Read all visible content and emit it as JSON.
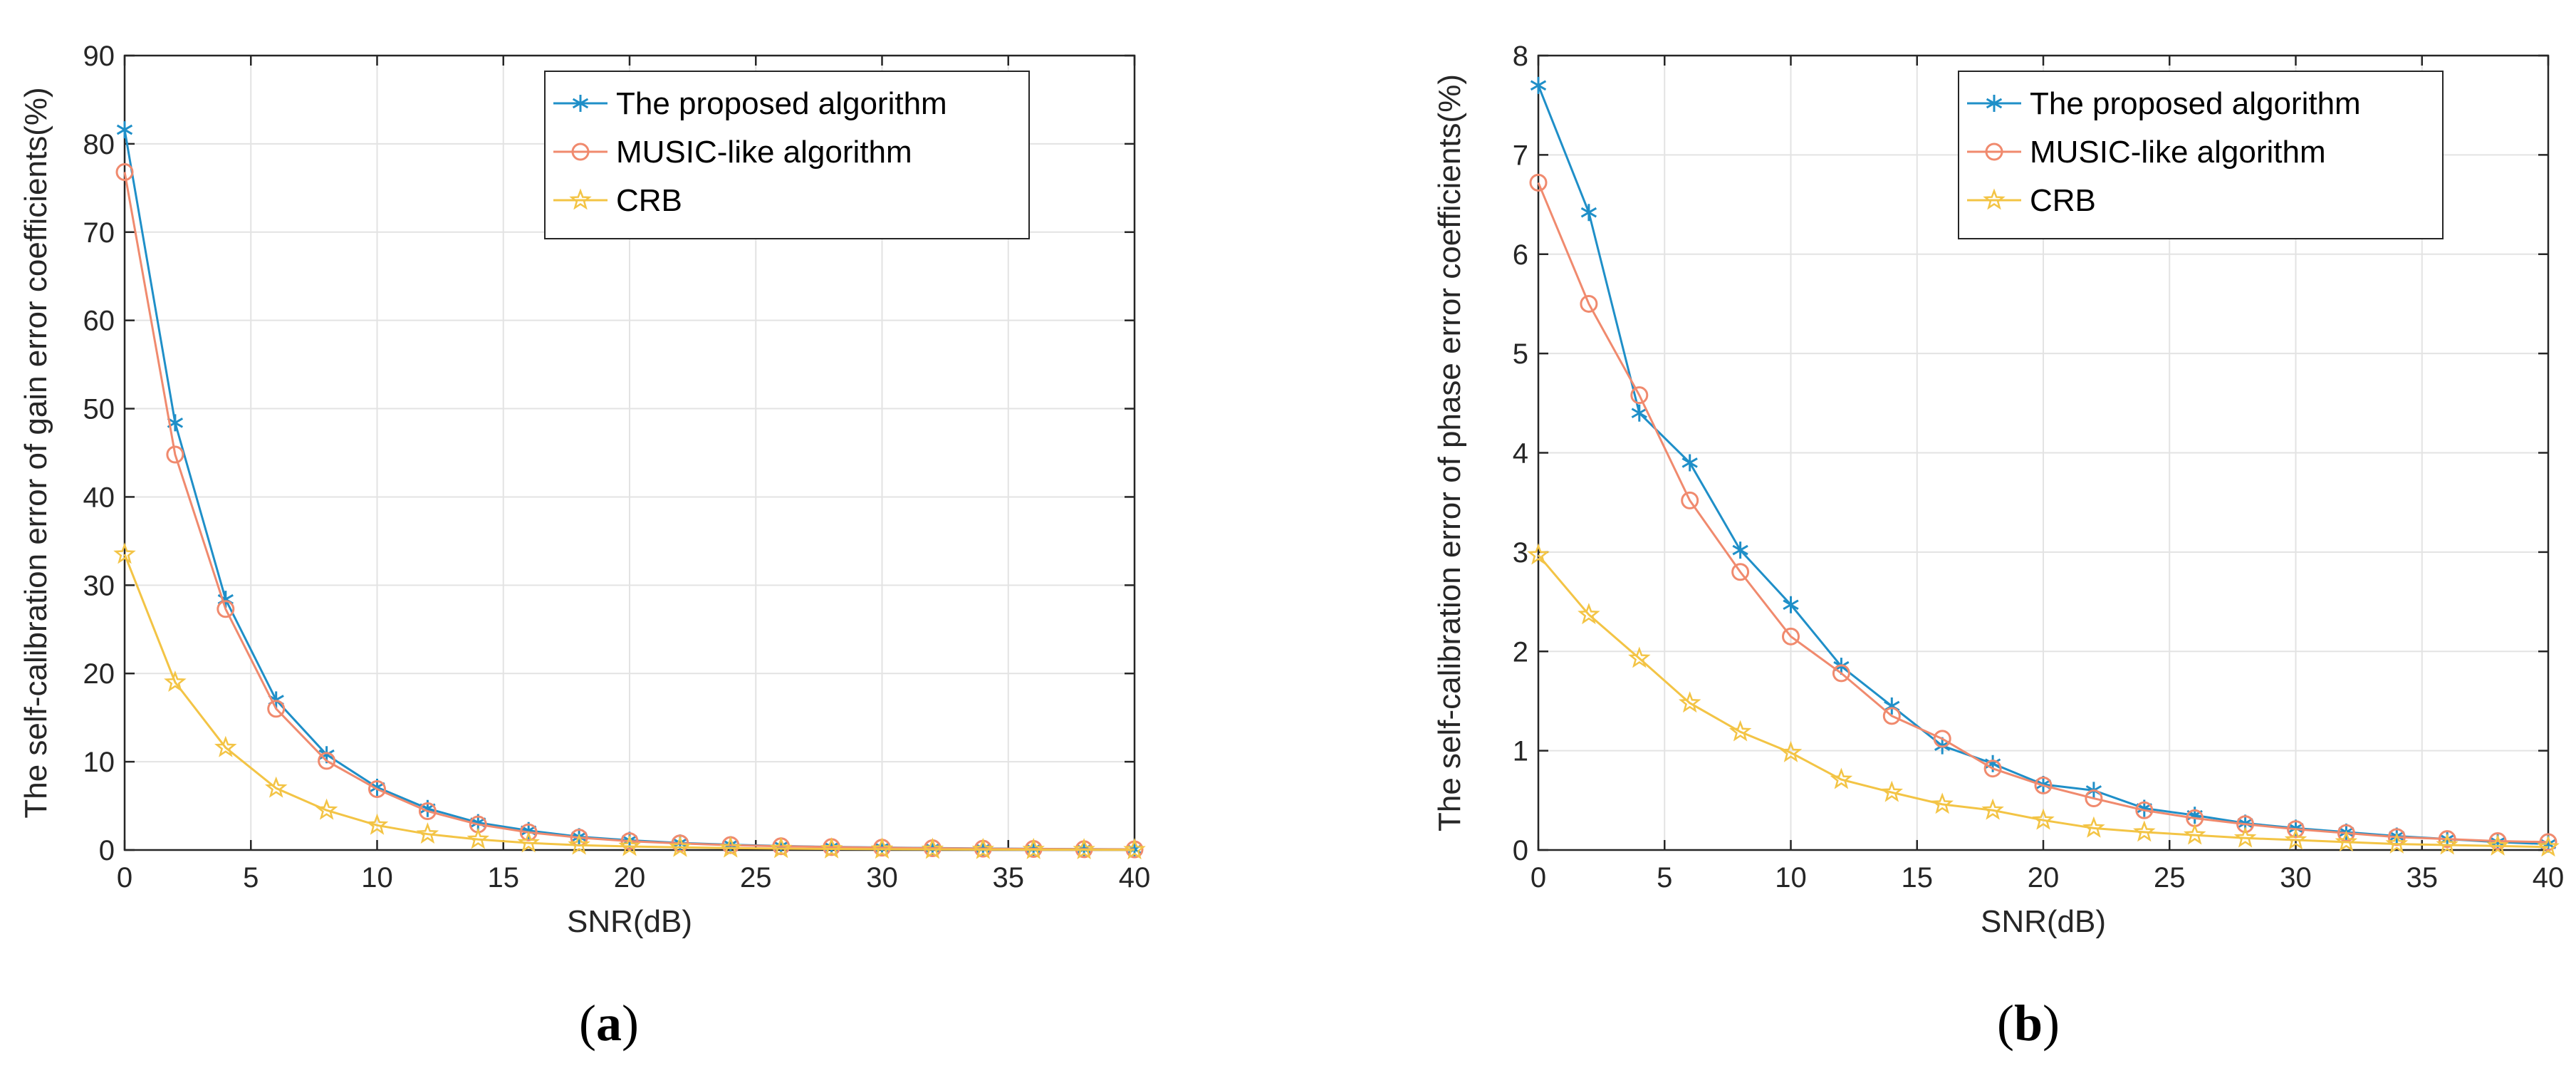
{
  "colors": {
    "proposed": "#1f8fc8",
    "music": "#f08a6e",
    "crb": "#f3c445",
    "axis": "#262626",
    "grid": "#e3e3e3"
  },
  "chart_data": [
    {
      "type": "line",
      "panel_label": "a",
      "panel_label_open": "(",
      "panel_label_close": ")",
      "xlabel": "SNR(dB)",
      "ylabel": "The self-calibration error of gain error coefficients(%)",
      "xlim": [
        0,
        40
      ],
      "ylim": [
        0,
        90
      ],
      "xticks": [
        0,
        5,
        10,
        15,
        20,
        25,
        30,
        35,
        40
      ],
      "yticks": [
        0,
        10,
        20,
        30,
        40,
        50,
        60,
        70,
        80,
        90
      ],
      "grid": true,
      "legend_position": "top-right",
      "x": [
        0,
        2,
        4,
        6,
        8,
        10,
        12,
        14,
        16,
        18,
        20,
        22,
        24,
        26,
        28,
        30,
        32,
        34,
        36,
        38,
        40
      ],
      "series": [
        {
          "name": "The proposed algorithm",
          "marker": "star",
          "values": [
            81.6,
            48.4,
            28.4,
            17.0,
            10.8,
            7.1,
            4.7,
            3.1,
            2.2,
            1.5,
            1.1,
            0.8,
            0.6,
            0.45,
            0.35,
            0.28,
            0.22,
            0.17,
            0.13,
            0.1,
            0.08
          ]
        },
        {
          "name": "MUSIC-like algorithm",
          "marker": "circle",
          "values": [
            76.8,
            44.8,
            27.3,
            16.0,
            10.1,
            6.9,
            4.4,
            2.9,
            2.0,
            1.4,
            1.0,
            0.75,
            0.55,
            0.42,
            0.33,
            0.26,
            0.2,
            0.15,
            0.12,
            0.09,
            0.07
          ]
        },
        {
          "name": "CRB",
          "marker": "pentagram",
          "values": [
            33.5,
            19.0,
            11.6,
            7.0,
            4.5,
            2.8,
            1.8,
            1.2,
            0.8,
            0.55,
            0.4,
            0.3,
            0.22,
            0.16,
            0.12,
            0.09,
            0.07,
            0.05,
            0.04,
            0.03,
            0.02
          ]
        }
      ]
    },
    {
      "type": "line",
      "panel_label": "b",
      "panel_label_open": "(",
      "panel_label_close": ")",
      "xlabel": "SNR(dB)",
      "ylabel": "The self-calibration error of phase error coefficients(%)",
      "xlim": [
        0,
        40
      ],
      "ylim": [
        0,
        8
      ],
      "xticks": [
        0,
        5,
        10,
        15,
        20,
        25,
        30,
        35,
        40
      ],
      "yticks": [
        0,
        1,
        2,
        3,
        4,
        5,
        6,
        7,
        8
      ],
      "grid": true,
      "legend_position": "top-right",
      "x": [
        0,
        2,
        4,
        6,
        8,
        10,
        12,
        14,
        16,
        18,
        20,
        22,
        24,
        26,
        28,
        30,
        32,
        34,
        36,
        38,
        40
      ],
      "series": [
        {
          "name": "The proposed algorithm",
          "marker": "star",
          "values": [
            7.7,
            6.42,
            4.4,
            3.9,
            3.02,
            2.47,
            1.85,
            1.45,
            1.05,
            0.87,
            0.66,
            0.6,
            0.42,
            0.35,
            0.27,
            0.22,
            0.18,
            0.14,
            0.11,
            0.08,
            0.06
          ]
        },
        {
          "name": "MUSIC-like algorithm",
          "marker": "circle",
          "values": [
            6.72,
            5.5,
            4.58,
            3.52,
            2.8,
            2.15,
            1.78,
            1.35,
            1.12,
            0.82,
            0.65,
            0.52,
            0.4,
            0.32,
            0.26,
            0.21,
            0.17,
            0.13,
            0.11,
            0.09,
            0.08
          ]
        },
        {
          "name": "CRB",
          "marker": "pentagram",
          "values": [
            2.97,
            2.37,
            1.93,
            1.48,
            1.19,
            0.98,
            0.71,
            0.58,
            0.46,
            0.4,
            0.3,
            0.22,
            0.18,
            0.15,
            0.12,
            0.1,
            0.08,
            0.06,
            0.05,
            0.04,
            0.03
          ]
        }
      ]
    }
  ]
}
